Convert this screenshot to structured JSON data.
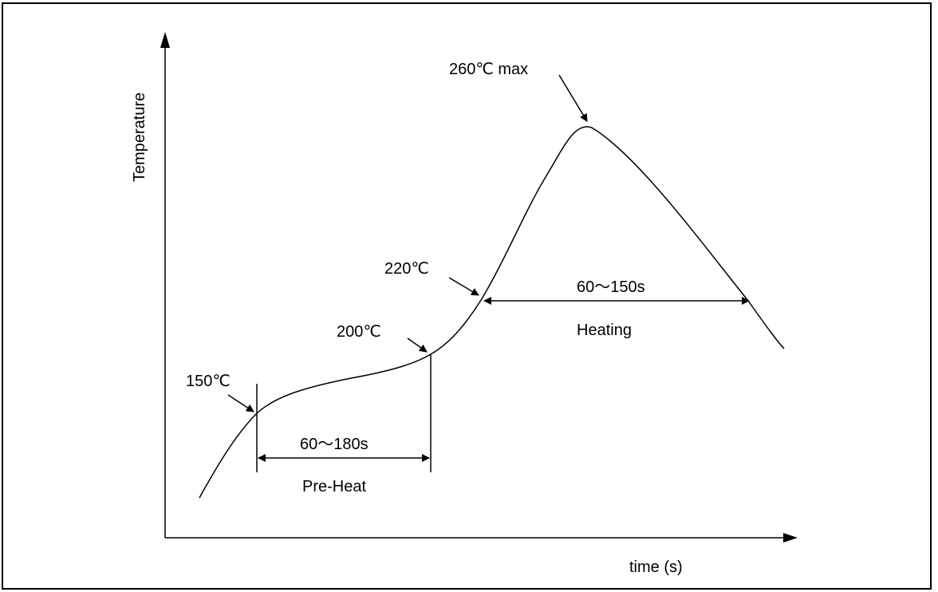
{
  "diagram": {
    "axes": {
      "y_label": "Temperature",
      "x_label": "time (s)"
    },
    "annotations": {
      "peak": "260℃ max",
      "t220": "220℃",
      "t200": "200℃",
      "t150": "150℃"
    },
    "intervals": {
      "heating_duration": "60～150s",
      "heating_name": "Heating",
      "preheat_duration": "60～180s",
      "preheat_name": "Pre-Heat"
    },
    "colors": {
      "line": "#000000",
      "background": "#ffffff"
    }
  }
}
